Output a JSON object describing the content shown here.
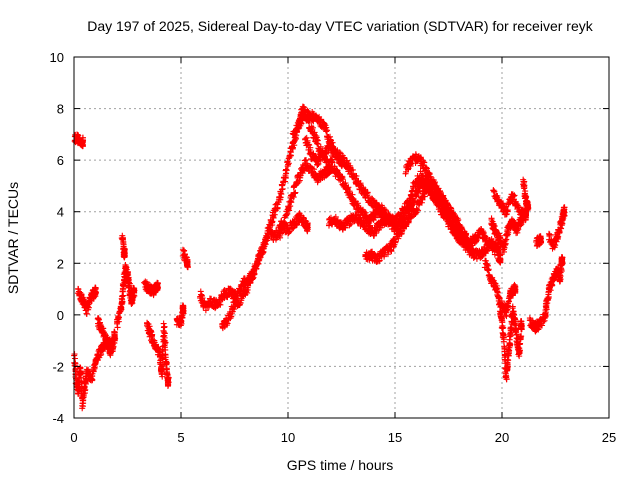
{
  "chart_data": {
    "type": "scatter",
    "title": "Day 197 of 2025, Sidereal Day-to-day VTEC variation (SDTVAR) for receiver reyk",
    "xlabel": "GPS time / hours",
    "ylabel": "SDTVAR / TECUs",
    "xlim": [
      0,
      25
    ],
    "ylim": [
      -4,
      10
    ],
    "xticks": [
      "0",
      "5",
      "10",
      "15",
      "20",
      "25"
    ],
    "yticks": [
      "-4",
      "-2",
      "0",
      "2",
      "4",
      "6",
      "8",
      "10"
    ],
    "grid": true,
    "marker": "+",
    "color": "#ff0000",
    "series": [
      {
        "name": "SDTVAR",
        "segments": [
          [
            [
              0.0,
              6.9
            ],
            [
              0.2,
              6.8
            ],
            [
              0.4,
              6.7
            ]
          ],
          [
            [
              0.0,
              -1.5
            ],
            [
              0.1,
              -2.5
            ],
            [
              0.2,
              -3.0
            ],
            [
              0.3,
              -2.0
            ],
            [
              0.4,
              -3.5
            ],
            [
              0.5,
              -2.8
            ],
            [
              0.6,
              -2.2
            ],
            [
              0.8,
              -2.5
            ],
            [
              1.0,
              -1.8
            ],
            [
              1.2,
              -1.5
            ],
            [
              1.4,
              -1.2
            ],
            [
              1.6,
              -1.0
            ],
            [
              1.8,
              -1.3
            ],
            [
              1.9,
              -0.8
            ]
          ],
          [
            [
              0.2,
              0.9
            ],
            [
              0.4,
              0.6
            ],
            [
              0.6,
              0.2
            ],
            [
              0.8,
              0.7
            ],
            [
              1.0,
              0.9
            ]
          ],
          [
            [
              1.1,
              -0.2
            ],
            [
              1.3,
              -0.6
            ],
            [
              1.5,
              -0.9
            ],
            [
              1.7,
              -1.4
            ]
          ],
          [
            [
              2.0,
              -0.5
            ],
            [
              2.2,
              0.3
            ],
            [
              2.3,
              1.0
            ],
            [
              2.4,
              1.8
            ],
            [
              2.5,
              1.5
            ],
            [
              2.6,
              1.0
            ],
            [
              2.7,
              0.5
            ],
            [
              2.8,
              0.9
            ]
          ],
          [
            [
              2.25,
              3.1
            ],
            [
              2.35,
              2.4
            ]
          ],
          [
            [
              3.3,
              1.2
            ],
            [
              3.5,
              1.0
            ],
            [
              3.7,
              0.9
            ],
            [
              3.9,
              1.1
            ]
          ],
          [
            [
              3.4,
              -0.3
            ],
            [
              3.6,
              -0.8
            ],
            [
              3.8,
              -1.2
            ],
            [
              4.0,
              -1.5
            ],
            [
              4.1,
              -2.3
            ],
            [
              4.2,
              -0.5
            ],
            [
              4.3,
              -1.8
            ],
            [
              4.4,
              -2.6
            ]
          ],
          [
            [
              4.8,
              -0.2
            ],
            [
              5.0,
              -0.3
            ],
            [
              5.1,
              0.2
            ]
          ],
          [
            [
              5.1,
              2.4
            ],
            [
              5.3,
              2.0
            ]
          ],
          [
            [
              5.9,
              0.8
            ],
            [
              6.1,
              0.3
            ],
            [
              6.4,
              0.5
            ],
            [
              6.7,
              0.4
            ],
            [
              7.0,
              0.8
            ],
            [
              7.3,
              0.9
            ],
            [
              7.6,
              0.7
            ],
            [
              7.9,
              1.2
            ],
            [
              8.2,
              1.4
            ],
            [
              8.5,
              1.9
            ],
            [
              8.8,
              2.5
            ],
            [
              9.1,
              3.2
            ],
            [
              9.4,
              3.0
            ],
            [
              9.7,
              3.5
            ],
            [
              10.0,
              3.3
            ],
            [
              10.3,
              3.6
            ],
            [
              10.6,
              3.8
            ],
            [
              10.9,
              3.4
            ]
          ],
          [
            [
              6.9,
              -0.5
            ],
            [
              7.2,
              -0.2
            ],
            [
              7.5,
              0.4
            ],
            [
              7.8,
              0.6
            ],
            [
              8.1,
              1.0
            ],
            [
              8.4,
              1.6
            ],
            [
              8.7,
              2.3
            ],
            [
              9.0,
              3.0
            ],
            [
              9.3,
              3.8
            ],
            [
              9.6,
              4.5
            ],
            [
              9.9,
              5.5
            ],
            [
              10.2,
              6.5
            ],
            [
              10.5,
              7.3
            ],
            [
              10.7,
              8.0
            ],
            [
              11.0,
              7.4
            ],
            [
              11.3,
              6.8
            ],
            [
              11.6,
              6.2
            ],
            [
              11.9,
              5.8
            ],
            [
              12.2,
              6.3
            ],
            [
              12.5,
              5.9
            ]
          ],
          [
            [
              9.6,
              3.0
            ],
            [
              9.9,
              3.8
            ],
            [
              10.2,
              4.6
            ],
            [
              10.5,
              5.3
            ],
            [
              10.8,
              5.9
            ],
            [
              11.1,
              5.6
            ],
            [
              11.4,
              5.3
            ],
            [
              11.7,
              5.5
            ],
            [
              12.0,
              5.7
            ],
            [
              12.3,
              5.5
            ],
            [
              12.6,
              5.1
            ],
            [
              12.9,
              4.7
            ],
            [
              13.2,
              4.2
            ],
            [
              13.5,
              3.9
            ],
            [
              13.8,
              3.7
            ],
            [
              14.1,
              3.9
            ],
            [
              14.4,
              4.1
            ],
            [
              14.7,
              3.8
            ],
            [
              15.0,
              3.6
            ],
            [
              15.3,
              3.9
            ],
            [
              15.6,
              4.3
            ],
            [
              15.9,
              5.0
            ],
            [
              16.2,
              5.4
            ],
            [
              16.5,
              5.0
            ],
            [
              16.8,
              4.6
            ],
            [
              17.1,
              4.3
            ],
            [
              17.4,
              3.9
            ],
            [
              17.7,
              3.5
            ],
            [
              18.0,
              3.0
            ],
            [
              18.3,
              2.7
            ],
            [
              18.6,
              2.4
            ],
            [
              18.9,
              2.3
            ],
            [
              19.2,
              2.5
            ],
            [
              19.5,
              2.8
            ],
            [
              19.8,
              2.6
            ]
          ],
          [
            [
              10.2,
              6.8
            ],
            [
              10.5,
              7.4
            ],
            [
              10.8,
              7.8
            ],
            [
              11.1,
              7.7
            ],
            [
              11.4,
              7.6
            ],
            [
              11.7,
              7.3
            ],
            [
              12.0,
              6.6
            ],
            [
              12.3,
              6.2
            ],
            [
              12.6,
              6.0
            ],
            [
              12.9,
              5.6
            ],
            [
              13.2,
              5.2
            ],
            [
              13.5,
              4.8
            ],
            [
              13.8,
              4.5
            ],
            [
              14.1,
              4.2
            ],
            [
              14.4,
              3.9
            ],
            [
              14.7,
              3.6
            ],
            [
              15.0,
              3.4
            ],
            [
              15.3,
              3.6
            ],
            [
              15.6,
              4.0
            ],
            [
              15.9,
              4.5
            ],
            [
              16.2,
              5.0
            ],
            [
              16.5,
              5.3
            ],
            [
              16.8,
              5.0
            ],
            [
              17.1,
              4.6
            ],
            [
              17.4,
              4.2
            ],
            [
              17.7,
              3.8
            ],
            [
              18.0,
              3.4
            ],
            [
              18.3,
              3.0
            ]
          ],
          [
            [
              10.8,
              6.9
            ],
            [
              11.1,
              6.2
            ],
            [
              11.4,
              5.9
            ],
            [
              11.7,
              6.3
            ],
            [
              12.0,
              6.6
            ]
          ],
          [
            [
              11.9,
              3.6
            ],
            [
              12.2,
              3.7
            ],
            [
              12.5,
              3.4
            ],
            [
              12.8,
              3.6
            ],
            [
              13.1,
              3.8
            ],
            [
              13.4,
              3.6
            ],
            [
              13.7,
              3.4
            ],
            [
              14.0,
              3.2
            ],
            [
              14.3,
              3.5
            ],
            [
              14.6,
              3.7
            ]
          ],
          [
            [
              13.6,
              2.3
            ],
            [
              13.9,
              2.3
            ],
            [
              14.2,
              2.2
            ],
            [
              14.5,
              2.4
            ],
            [
              14.8,
              2.6
            ],
            [
              15.1,
              3.0
            ],
            [
              15.4,
              3.4
            ],
            [
              15.7,
              3.8
            ],
            [
              16.0,
              4.1
            ],
            [
              16.3,
              4.6
            ],
            [
              16.6,
              4.9
            ],
            [
              16.9,
              4.5
            ],
            [
              17.2,
              4.0
            ],
            [
              17.5,
              3.6
            ],
            [
              17.8,
              3.2
            ],
            [
              18.1,
              2.9
            ],
            [
              18.4,
              2.7
            ],
            [
              18.7,
              2.9
            ],
            [
              19.0,
              3.2
            ],
            [
              19.3,
              2.9
            ],
            [
              19.6,
              2.6
            ],
            [
              19.9,
              2.2
            ]
          ],
          [
            [
              15.5,
              5.6
            ],
            [
              15.8,
              6.0
            ],
            [
              16.1,
              6.1
            ],
            [
              16.4,
              5.7
            ],
            [
              16.7,
              5.2
            ],
            [
              17.0,
              4.8
            ],
            [
              17.3,
              4.4
            ],
            [
              17.6,
              4.0
            ],
            [
              17.9,
              3.6
            ],
            [
              18.2,
              3.1
            ],
            [
              18.5,
              2.6
            ]
          ],
          [
            [
              19.2,
              2.0
            ],
            [
              19.5,
              1.4
            ],
            [
              19.7,
              1.1
            ],
            [
              19.9,
              0.5
            ],
            [
              20.0,
              -0.3
            ],
            [
              20.1,
              -1.2
            ],
            [
              20.2,
              -2.4
            ],
            [
              20.3,
              -1.6
            ],
            [
              20.4,
              -0.8
            ],
            [
              20.5,
              0.2
            ],
            [
              20.6,
              -0.3
            ],
            [
              20.7,
              -0.9
            ],
            [
              20.8,
              -1.6
            ],
            [
              20.9,
              -0.4
            ]
          ],
          [
            [
              19.5,
              3.6
            ],
            [
              19.7,
              3.2
            ],
            [
              19.9,
              2.9
            ],
            [
              20.1,
              2.6
            ],
            [
              20.3,
              3.4
            ],
            [
              20.5,
              3.6
            ],
            [
              20.7,
              3.3
            ],
            [
              20.9,
              3.7
            ],
            [
              21.1,
              4.0
            ]
          ],
          [
            [
              19.6,
              4.7
            ],
            [
              19.9,
              4.3
            ],
            [
              20.2,
              4.0
            ],
            [
              20.5,
              4.6
            ],
            [
              20.8,
              4.1
            ],
            [
              21.1,
              3.8
            ]
          ],
          [
            [
              20.0,
              0.4
            ],
            [
              20.2,
              0.1
            ],
            [
              20.4,
              0.8
            ],
            [
              20.6,
              1.0
            ]
          ],
          [
            [
              21.0,
              5.2
            ],
            [
              21.1,
              4.5
            ],
            [
              21.2,
              4.2
            ]
          ],
          [
            [
              21.3,
              -0.2
            ],
            [
              21.5,
              -0.5
            ],
            [
              21.7,
              -0.4
            ],
            [
              22.0,
              -0.1
            ],
            [
              22.1,
              0.5
            ],
            [
              22.2,
              1.0
            ],
            [
              22.4,
              1.4
            ],
            [
              22.6,
              1.8
            ],
            [
              22.7,
              1.4
            ],
            [
              22.8,
              2.1
            ]
          ],
          [
            [
              21.6,
              2.8
            ],
            [
              21.8,
              2.9
            ]
          ],
          [
            [
              22.2,
              3.0
            ],
            [
              22.4,
              2.7
            ],
            [
              22.6,
              3.1
            ],
            [
              22.8,
              3.6
            ],
            [
              22.9,
              4.0
            ]
          ]
        ]
      }
    ]
  }
}
